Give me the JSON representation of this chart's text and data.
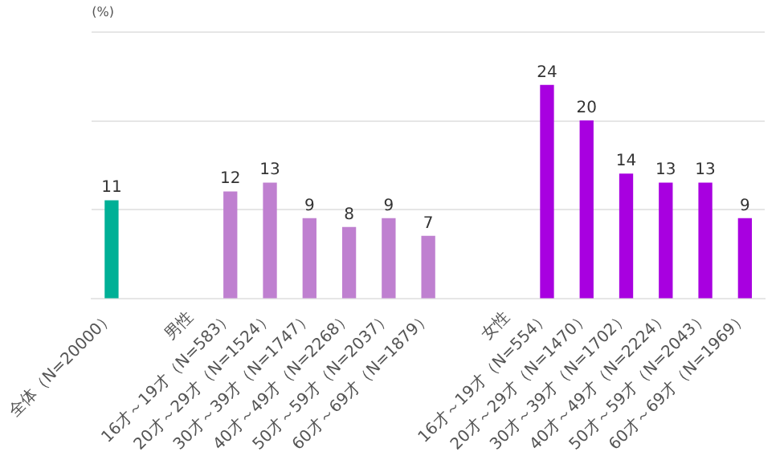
{
  "chart_data": {
    "type": "bar",
    "ylabel": "(%)",
    "categories": [
      "全体（N=20000）",
      null,
      "男性",
      "16才～19才（N=583）",
      "20才～29才（N=1524）",
      "30才～39才（N=1747）",
      "40才～49才（N=2268）",
      "50才～59才（N=2037）",
      "60才～69才（N=1879）",
      null,
      "女性",
      "16才～19才（N=554）",
      "20才～29才（N=1470）",
      "30才～39才（N=1702）",
      "40才～49才（N=2224）",
      "50才～59才（N=2043）",
      "60才～69才（N=1969）"
    ],
    "values": [
      11,
      null,
      null,
      12,
      13,
      9,
      8,
      9,
      7,
      null,
      null,
      24,
      20,
      14,
      13,
      13,
      9
    ],
    "colors": [
      "#00b096",
      "#bf80d0",
      "#bf80d0",
      "#bf80d0",
      "#bf80d0",
      "#bf80d0",
      "#bf80d0",
      "#bf80d0",
      "#bf80d0",
      "#a800e0",
      "#a800e0",
      "#a800e0",
      "#a800e0",
      "#a800e0",
      "#a800e0",
      "#a800e0",
      "#a800e0"
    ],
    "ylim": [
      0,
      30
    ],
    "yticks": [
      0,
      10,
      20,
      30
    ],
    "tick_labels": "x",
    "grid": "y",
    "data_labels": true,
    "legend": false
  }
}
